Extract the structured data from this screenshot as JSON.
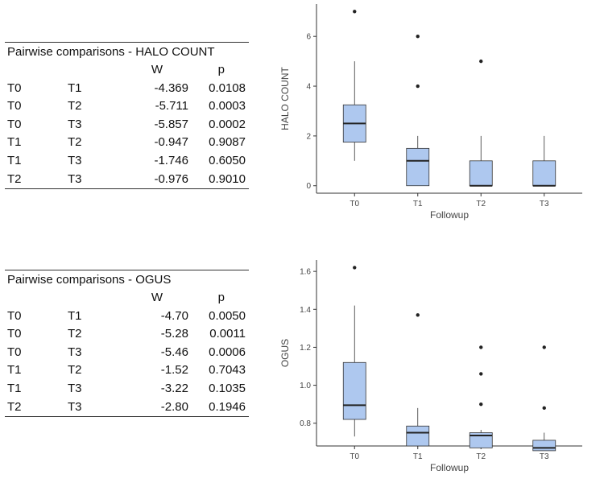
{
  "tables": [
    {
      "title": "Pairwise comparisons - HALO COUNT",
      "headers": [
        "",
        "",
        "W",
        "p"
      ],
      "rows": [
        [
          "T0",
          "T1",
          "-4.369",
          "0.0108"
        ],
        [
          "T0",
          "T2",
          "-5.711",
          "0.0003"
        ],
        [
          "T0",
          "T3",
          "-5.857",
          "0.0002"
        ],
        [
          "T1",
          "T2",
          "-0.947",
          "0.9087"
        ],
        [
          "T1",
          "T3",
          "-1.746",
          "0.6050"
        ],
        [
          "T2",
          "T3",
          "-0.976",
          "0.9010"
        ]
      ]
    },
    {
      "title": "Pairwise comparisons - OGUS",
      "headers": [
        "",
        "",
        "W",
        "p"
      ],
      "rows": [
        [
          "T0",
          "T1",
          "-4.70",
          "0.0050"
        ],
        [
          "T0",
          "T2",
          "-5.28",
          "0.0011"
        ],
        [
          "T0",
          "T3",
          "-5.46",
          "0.0006"
        ],
        [
          "T1",
          "T2",
          "-1.52",
          "0.7043"
        ],
        [
          "T1",
          "T3",
          "-3.22",
          "0.1035"
        ],
        [
          "T2",
          "T3",
          "-2.80",
          "0.1946"
        ]
      ]
    }
  ],
  "colors": {
    "box_fill": "#aec8ef",
    "box_stroke": "#333333",
    "axis": "#333333",
    "text": "#444444"
  },
  "chart_data": [
    {
      "type": "box",
      "title": "",
      "xlabel": "Followup",
      "ylabel": "HALO COUNT",
      "categories": [
        "T0",
        "T1",
        "T2",
        "T3"
      ],
      "ylim": [
        -0.3,
        7.3
      ],
      "yticks": [
        0,
        2,
        4,
        6
      ],
      "boxes": [
        {
          "category": "T0",
          "whisker_low": 1.0,
          "q1": 1.75,
          "median": 2.5,
          "q3": 3.25,
          "whisker_high": 5.0,
          "outliers": [
            7
          ]
        },
        {
          "category": "T1",
          "whisker_low": 0.0,
          "q1": 0.0,
          "median": 1.0,
          "q3": 1.5,
          "whisker_high": 2.0,
          "outliers": [
            4,
            6
          ]
        },
        {
          "category": "T2",
          "whisker_low": 0.0,
          "q1": 0.0,
          "median": 0.0,
          "q3": 1.0,
          "whisker_high": 2.0,
          "outliers": [
            5
          ]
        },
        {
          "category": "T3",
          "whisker_low": 0.0,
          "q1": 0.0,
          "median": 0.0,
          "q3": 1.0,
          "whisker_high": 2.0,
          "outliers": []
        }
      ]
    },
    {
      "type": "box",
      "title": "",
      "xlabel": "Followup",
      "ylabel": "OGUS",
      "categories": [
        "T0",
        "T1",
        "T2",
        "T3"
      ],
      "ylim": [
        0.68,
        1.66
      ],
      "yticks": [
        0.8,
        1.0,
        1.2,
        1.4,
        1.6
      ],
      "ytick_labels": [
        "0.8",
        "1.0",
        "1.2",
        "1.4",
        "1.6"
      ],
      "boxes": [
        {
          "category": "T0",
          "whisker_low": 0.73,
          "q1": 0.82,
          "median": 0.895,
          "q3": 1.12,
          "whisker_high": 1.42,
          "outliers": [
            1.62
          ]
        },
        {
          "category": "T1",
          "whisker_low": 0.675,
          "q1": 0.68,
          "median": 0.75,
          "q3": 0.785,
          "whisker_high": 0.88,
          "outliers": [
            1.37
          ]
        },
        {
          "category": "T2",
          "whisker_low": 0.67,
          "q1": 0.67,
          "median": 0.735,
          "q3": 0.75,
          "whisker_high": 0.765,
          "outliers": [
            0.9,
            1.06,
            1.2
          ]
        },
        {
          "category": "T3",
          "whisker_low": 0.655,
          "q1": 0.655,
          "median": 0.67,
          "q3": 0.71,
          "whisker_high": 0.75,
          "outliers": [
            0.88,
            1.2
          ]
        }
      ]
    }
  ]
}
